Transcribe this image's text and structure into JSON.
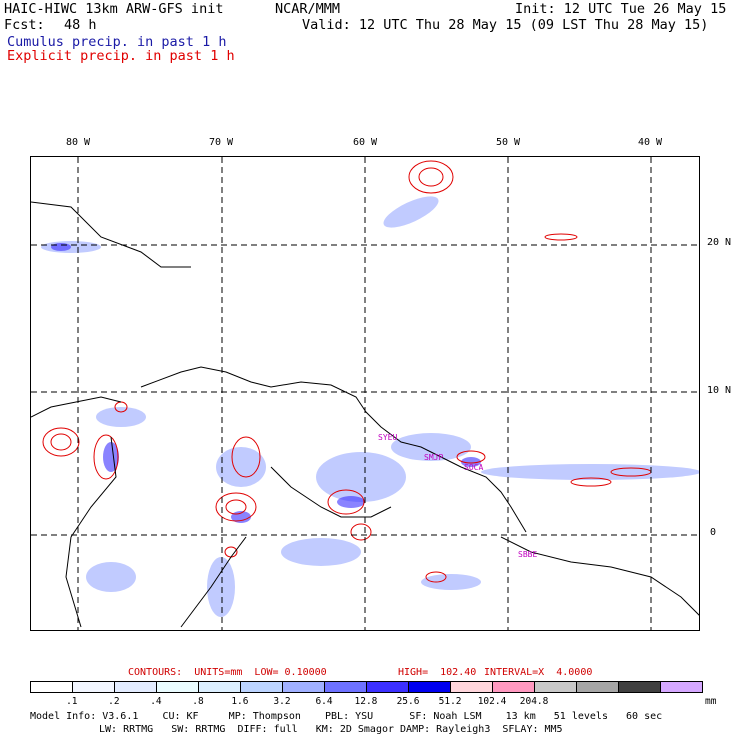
{
  "header": {
    "model_title": "HAIC-HIWC 13km ARW-GFS init",
    "org": "NCAR/MMM",
    "init": "Init: 12 UTC Tue 26 May 15",
    "fcst_label": "Fcst:",
    "fcst_value": "48 h",
    "valid": "Valid: 12 UTC Thu 28 May 15 (09 LST Thu 28 May 15)",
    "cumulus": "Cumulus precip. in past 1 h",
    "explicit": "Explicit precip. in past 1 h"
  },
  "map": {
    "lon_labels": [
      "80 W",
      "70 W",
      "60 W",
      "50 W",
      "40 W"
    ],
    "lat_labels": [
      "20 N",
      "10 N",
      "0"
    ],
    "stations": [
      "SYEU",
      "SMJP",
      "SOCA",
      "SBBE"
    ]
  },
  "contours": {
    "units_label": "CONTOURS:  UNITS=mm  LOW= 0.10000",
    "high": "HIGH=  102.40",
    "interval": "INTERVAL=X  4.0000"
  },
  "colorbar": {
    "colors": [
      "#ffffff",
      "#f2f6ff",
      "#e3ecff",
      "#eafcff",
      "#dcefff",
      "#bcd4ff",
      "#a0b0ff",
      "#6e72ff",
      "#3c30ff",
      "#0000f0",
      "#ffd6dc",
      "#ff99c0",
      "#c8c8c8",
      "#a6a6a6",
      "#404040",
      "#d5a8ff"
    ],
    "labels": [
      ".1",
      ".2",
      ".4",
      ".8",
      "1.6",
      "3.2",
      "6.4",
      "12.8",
      "25.6",
      "51.2",
      "102.4",
      "204.8"
    ],
    "unit": "mm"
  },
  "model_info": {
    "line1": "Model Info: V3.6.1    CU: KF     MP: Thompson    PBL: YSU      SF: Noah LSM    13 km   51 levels   60 sec",
    "line2": "LW: RRTMG   SW: RRTMG  DIFF: full   KM: 2D Smagor DAMP: Rayleigh3  SFLAY: MM5"
  }
}
